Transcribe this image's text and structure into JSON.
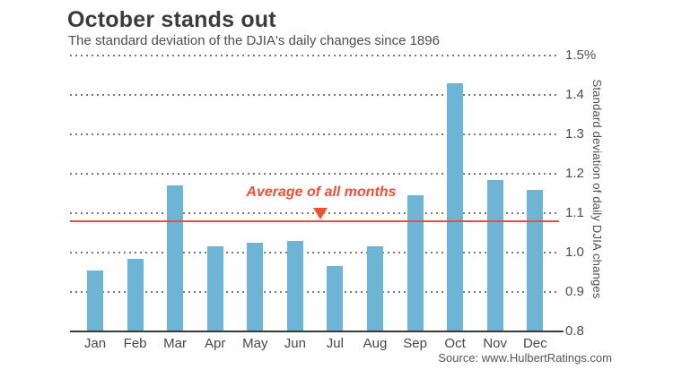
{
  "header": {
    "title": "October stands out",
    "subtitle": "The standard deviation of the DJIA's daily changes since 1896"
  },
  "annotation": {
    "label": "Average of all months"
  },
  "axis": {
    "y_title": "Standard deviation of daily DJIA changes"
  },
  "source": "Source: www.HulbertRatings.com",
  "colors": {
    "bar": "#6db4d5",
    "average_line": "#e35045",
    "annotation_text": "#ee4f38",
    "grid_dots": "#7b7b7b",
    "baseline": "#3a3a3a",
    "title_text": "#3b3b3b",
    "axis_text": "#4d4d4d"
  },
  "chart_data": {
    "type": "bar",
    "title": "October stands out",
    "subtitle": "The standard deviation of the DJIA's daily changes since 1896",
    "categories": [
      "Jan",
      "Feb",
      "Mar",
      "Apr",
      "May",
      "Jun",
      "Jul",
      "Aug",
      "Sep",
      "Oct",
      "Nov",
      "Dec"
    ],
    "values": [
      0.955,
      0.985,
      1.17,
      1.015,
      1.025,
      1.03,
      0.965,
      1.015,
      1.145,
      1.43,
      1.185,
      1.16
    ],
    "average_line_value": 1.08,
    "annotation": "Average of all months",
    "ylabel": "Standard deviation of daily DJIA changes",
    "ylim": [
      0.8,
      1.5
    ],
    "yticks": [
      0.8,
      0.9,
      1.0,
      1.1,
      1.2,
      1.3,
      1.4,
      1.5
    ],
    "ytick_labels": [
      "0.8",
      "0.9",
      "1.0",
      "1.1",
      "1.2",
      "1.3",
      "1.4",
      "1.5%"
    ],
    "grid": "horizontal dotted",
    "legend": "none",
    "bar_color": "#6db4d5"
  }
}
